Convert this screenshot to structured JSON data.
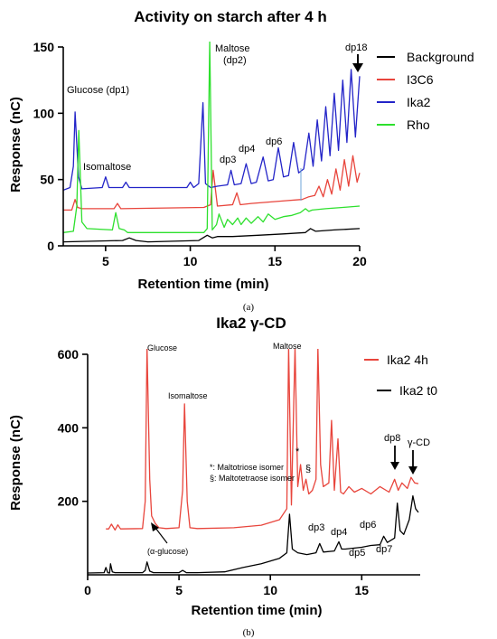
{
  "chart_data": [
    {
      "type": "line",
      "title": "Activity on starch after 4 h",
      "xlabel": "Retention time (min)",
      "ylabel": "Response  (nC)",
      "xlim": [
        2.5,
        20
      ],
      "ylim": [
        0,
        150
      ],
      "xticks": [
        5,
        10,
        15,
        20
      ],
      "yticks": [
        0,
        50,
        100,
        150
      ],
      "legend_position": "top-right",
      "grid": false,
      "series": [
        {
          "name": "Background",
          "color": "#000000",
          "x": [
            2.5,
            6.0,
            6.4,
            6.8,
            7.5,
            10.5,
            11.0,
            11.3,
            11.6,
            12.5,
            14.0,
            15.5,
            16.8,
            17.1,
            17.4,
            18.5,
            20.0
          ],
          "y": [
            3,
            4,
            6,
            4,
            3,
            4,
            8,
            6,
            7,
            7,
            8,
            9,
            10,
            13,
            11,
            12,
            13
          ]
        },
        {
          "name": "I3C6",
          "color": "#e8453c",
          "x": [
            2.5,
            3.0,
            3.2,
            3.35,
            3.6,
            5.5,
            5.7,
            5.9,
            10.8,
            11.2,
            11.35,
            11.6,
            12.5,
            12.75,
            12.95,
            13.6,
            14.6,
            15.6,
            16.6,
            17.0,
            17.35,
            17.6,
            17.85,
            18.1,
            18.35,
            18.6,
            18.85,
            19.1,
            19.35,
            19.6,
            19.85,
            20.0
          ],
          "y": [
            27,
            27,
            35,
            29,
            28,
            28,
            32,
            28,
            29,
            31,
            57,
            30,
            31,
            40,
            31,
            32,
            33,
            34,
            35,
            37,
            38,
            45,
            37,
            50,
            39,
            58,
            42,
            65,
            45,
            68,
            48,
            55
          ]
        },
        {
          "name": "Ika2",
          "color": "#2324c8",
          "x": [
            2.5,
            2.9,
            3.1,
            3.2,
            3.4,
            3.6,
            4.8,
            5.0,
            5.2,
            6.0,
            6.2,
            6.4,
            9.8,
            10.0,
            10.2,
            10.5,
            10.75,
            10.9,
            11.2,
            11.6,
            12.2,
            12.4,
            12.6,
            13.0,
            13.3,
            13.6,
            13.9,
            14.3,
            14.6,
            14.9,
            15.2,
            15.5,
            15.8,
            16.1,
            16.4,
            16.7,
            17.0,
            17.25,
            17.5,
            17.75,
            18.0,
            18.25,
            18.5,
            18.75,
            19.0,
            19.25,
            19.5,
            19.75,
            20.0
          ],
          "y": [
            42,
            44,
            60,
            101,
            52,
            43,
            44,
            52,
            44,
            44,
            48,
            44,
            44,
            48,
            44,
            47,
            108,
            47,
            44,
            45,
            46,
            57,
            46,
            47,
            62,
            47,
            48,
            67,
            49,
            50,
            74,
            52,
            53,
            78,
            55,
            58,
            85,
            60,
            95,
            64,
            105,
            68,
            115,
            72,
            125,
            78,
            133,
            82,
            128
          ]
        },
        {
          "name": "Rho",
          "color": "#2de02d",
          "x": [
            2.5,
            3.1,
            3.3,
            3.42,
            3.6,
            3.9,
            5.4,
            5.6,
            5.8,
            6.1,
            6.3,
            10.8,
            11.0,
            11.15,
            11.3,
            11.55,
            11.7,
            12.0,
            12.2,
            12.5,
            12.8,
            13.0,
            13.3,
            13.6,
            14.0,
            14.3,
            14.6,
            15.0,
            15.5,
            16.0,
            16.5,
            16.8,
            17.0,
            17.2,
            18.0,
            19.0,
            20.0
          ],
          "y": [
            10,
            11,
            30,
            87,
            18,
            13,
            12,
            25,
            13,
            12,
            10,
            10,
            13,
            155,
            12,
            16,
            24,
            14,
            20,
            16,
            21,
            16,
            21,
            17,
            22,
            18,
            24,
            20,
            22,
            23,
            25,
            28,
            26,
            27,
            28,
            29,
            30
          ]
        }
      ],
      "annotations": [
        "Glucose (dp1)",
        "Isomaltose",
        "Maltose",
        "(dp2)",
        "dp3",
        "dp4",
        "dp6",
        "dp18"
      ]
    },
    {
      "type": "line",
      "title": "Ika2 γ-CD",
      "xlabel": "Retention time (min)",
      "ylabel": "Response  (nC)",
      "xlim": [
        0,
        18.2
      ],
      "ylim": [
        0,
        600
      ],
      "xticks": [
        0,
        5,
        10,
        15
      ],
      "yticks": [
        200,
        400,
        600
      ],
      "legend_position": "top-right",
      "grid": false,
      "series": [
        {
          "name": "Ika2 4h",
          "color": "#e8453c",
          "x": [
            1.0,
            1.15,
            1.3,
            1.5,
            1.65,
            1.8,
            3.0,
            3.15,
            3.25,
            3.4,
            3.5,
            3.7,
            3.9,
            4.3,
            5.0,
            5.2,
            5.3,
            5.45,
            5.6,
            6.0,
            8.0,
            9.5,
            10.5,
            10.9,
            11.0,
            11.15,
            11.35,
            11.5,
            11.65,
            11.8,
            11.95,
            12.1,
            12.3,
            12.5,
            12.6,
            12.75,
            12.9,
            13.2,
            13.35,
            13.5,
            13.7,
            13.85,
            14.0,
            14.3,
            14.6,
            15.0,
            15.5,
            16.0,
            16.5,
            16.8,
            17.0,
            17.2,
            17.5,
            17.7,
            17.9,
            18.1
          ],
          "y": [
            125,
            125,
            138,
            122,
            136,
            125,
            126,
            200,
            620,
            260,
            160,
            140,
            128,
            126,
            128,
            230,
            465,
            200,
            128,
            126,
            128,
            135,
            150,
            180,
            620,
            190,
            620,
            240,
            300,
            230,
            260,
            220,
            230,
            260,
            620,
            300,
            240,
            250,
            420,
            230,
            370,
            225,
            220,
            240,
            225,
            235,
            220,
            240,
            225,
            260,
            230,
            250,
            235,
            265,
            250,
            248
          ]
        },
        {
          "name": "Ika2 t0",
          "color": "#000000",
          "x": [
            0.0,
            0.9,
            1.0,
            1.1,
            1.2,
            1.25,
            1.35,
            1.5,
            3.0,
            3.15,
            3.25,
            3.4,
            3.6,
            5.0,
            5.2,
            5.4,
            6.0,
            7.5,
            8.5,
            9.5,
            10.5,
            10.9,
            11.05,
            11.2,
            11.5,
            12.0,
            12.5,
            12.7,
            12.9,
            13.5,
            13.75,
            13.9,
            14.1,
            15.0,
            15.5,
            16.0,
            16.2,
            16.4,
            16.8,
            16.95,
            17.1,
            17.3,
            17.6,
            17.8,
            17.95,
            18.1
          ],
          "y": [
            5,
            6,
            20,
            6,
            5,
            30,
            8,
            6,
            6,
            12,
            35,
            10,
            6,
            6,
            12,
            6,
            6,
            8,
            20,
            30,
            45,
            60,
            165,
            70,
            60,
            55,
            60,
            85,
            62,
            65,
            90,
            70,
            70,
            75,
            80,
            82,
            105,
            88,
            100,
            195,
            120,
            110,
            150,
            215,
            180,
            170
          ]
        }
      ],
      "annotations": [
        "Glucose",
        "Isomaltose",
        "Maltose",
        "*: Maltotriose isomer",
        "§: Maltotetraose isomer",
        "*",
        "§",
        "(α-glucose)",
        "dp3",
        "dp4",
        "dp5",
        "dp6",
        "dp7",
        "dp8",
        "γ-CD"
      ]
    }
  ],
  "captions": [
    "(a)",
    "(b)"
  ]
}
